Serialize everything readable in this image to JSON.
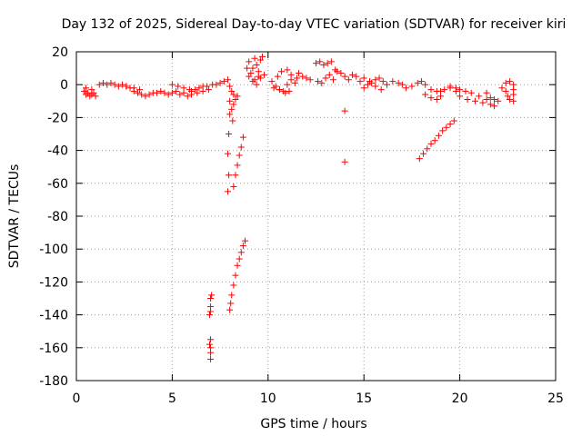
{
  "chart_data": {
    "type": "scatter",
    "title": "Day 132 of 2025, Sidereal Day-to-day VTEC variation (SDTVAR) for receiver kiri",
    "xlabel": "GPS time / hours",
    "ylabel": "SDTVAR / TECUs",
    "xlim": [
      0,
      25
    ],
    "ylim": [
      -180,
      20
    ],
    "xticks": [
      0,
      5,
      10,
      15,
      20,
      25
    ],
    "yticks": [
      20,
      0,
      -20,
      -40,
      -60,
      -80,
      -100,
      -120,
      -140,
      -160,
      -180
    ],
    "grid": true,
    "marker": "+",
    "marker_color": "#ff0000",
    "series": [
      {
        "points": [
          [
            0.4,
            -4
          ],
          [
            0.5,
            -6
          ],
          [
            0.6,
            -5
          ],
          [
            0.7,
            -7
          ],
          [
            0.8,
            -3
          ],
          [
            0.9,
            -5
          ],
          [
            1.2,
            0
          ],
          [
            1.4,
            1
          ],
          [
            1.6,
            0
          ],
          [
            1.8,
            1
          ],
          [
            2.0,
            0
          ],
          [
            2.2,
            -1
          ],
          [
            2.4,
            0
          ],
          [
            2.6,
            -1
          ],
          [
            2.8,
            -2
          ],
          [
            3.0,
            -4
          ],
          [
            3.2,
            -5
          ],
          [
            3.4,
            -6
          ],
          [
            3.6,
            -7
          ],
          [
            3.8,
            -6
          ],
          [
            4.0,
            -5
          ],
          [
            4.2,
            -5
          ],
          [
            4.4,
            -4
          ],
          [
            4.6,
            -5
          ],
          [
            4.8,
            -6
          ],
          [
            5.0,
            -5
          ],
          [
            5.2,
            -4
          ],
          [
            5.4,
            -6
          ],
          [
            5.6,
            -5
          ],
          [
            5.8,
            -7
          ],
          [
            6.0,
            -6
          ],
          [
            5.0,
            0
          ],
          [
            5.3,
            -1
          ],
          [
            5.6,
            -2
          ],
          [
            5.9,
            -3
          ],
          [
            6.2,
            -3
          ],
          [
            6.4,
            -2
          ],
          [
            6.6,
            -1
          ],
          [
            6.8,
            -1
          ],
          [
            6.0,
            -4
          ],
          [
            6.3,
            -5
          ],
          [
            6.6,
            -4
          ],
          [
            6.9,
            -3
          ],
          [
            7.1,
            0
          ],
          [
            7.3,
            0
          ],
          [
            7.5,
            1
          ],
          [
            7.7,
            2
          ],
          [
            7.9,
            3
          ],
          [
            8.0,
            -1
          ],
          [
            8.1,
            -4
          ],
          [
            8.2,
            -6
          ],
          [
            7.0,
            -130
          ],
          [
            7.0,
            -135
          ],
          [
            7.0,
            -138
          ],
          [
            7.05,
            -128
          ],
          [
            6.95,
            -140
          ],
          [
            7.0,
            -155
          ],
          [
            7.0,
            -160
          ],
          [
            7.0,
            -163
          ],
          [
            7.0,
            -167
          ],
          [
            6.95,
            -158
          ],
          [
            8.0,
            -10
          ],
          [
            8.0,
            -18
          ],
          [
            7.95,
            -30
          ],
          [
            7.9,
            -42
          ],
          [
            7.95,
            -55
          ],
          [
            7.9,
            -65
          ],
          [
            8.2,
            -12
          ],
          [
            8.3,
            -9
          ],
          [
            8.4,
            -7
          ],
          [
            8.1,
            -15
          ],
          [
            8.15,
            -22
          ],
          [
            8.2,
            -62
          ],
          [
            8.3,
            -55
          ],
          [
            8.4,
            -49
          ],
          [
            8.5,
            -43
          ],
          [
            8.6,
            -38
          ],
          [
            8.7,
            -32
          ],
          [
            8.0,
            -137
          ],
          [
            8.05,
            -133
          ],
          [
            8.1,
            -128
          ],
          [
            8.2,
            -122
          ],
          [
            8.3,
            -116
          ],
          [
            8.4,
            -110
          ],
          [
            8.5,
            -106
          ],
          [
            8.6,
            -102
          ],
          [
            8.7,
            -98
          ],
          [
            8.8,
            -95
          ],
          [
            9.0,
            14
          ],
          [
            9.2,
            10
          ],
          [
            9.3,
            16
          ],
          [
            9.4,
            12
          ],
          [
            9.5,
            8
          ],
          [
            9.6,
            15
          ],
          [
            9.7,
            17
          ],
          [
            9.0,
            5
          ],
          [
            9.2,
            2
          ],
          [
            9.4,
            0
          ],
          [
            9.6,
            4
          ],
          [
            9.8,
            6
          ],
          [
            8.9,
            10
          ],
          [
            9.1,
            7
          ],
          [
            9.3,
            3
          ],
          [
            9.5,
            5
          ],
          [
            10.2,
            2
          ],
          [
            10.4,
            -1
          ],
          [
            10.6,
            -3
          ],
          [
            10.8,
            -4
          ],
          [
            11.0,
            0
          ],
          [
            11.2,
            3
          ],
          [
            11.4,
            1
          ],
          [
            10.5,
            5
          ],
          [
            10.7,
            8
          ],
          [
            11.0,
            9
          ],
          [
            11.2,
            6
          ],
          [
            11.5,
            4
          ],
          [
            10.3,
            -2
          ],
          [
            10.6,
            -3
          ],
          [
            10.9,
            -5
          ],
          [
            11.1,
            -4
          ],
          [
            11.6,
            7
          ],
          [
            11.8,
            5
          ],
          [
            12.0,
            4
          ],
          [
            12.2,
            3
          ],
          [
            12.5,
            13
          ],
          [
            12.7,
            14
          ],
          [
            12.9,
            12
          ],
          [
            13.1,
            13
          ],
          [
            13.3,
            14
          ],
          [
            13.5,
            9
          ],
          [
            12.6,
            2
          ],
          [
            12.8,
            1
          ],
          [
            13.0,
            4
          ],
          [
            13.2,
            6
          ],
          [
            13.4,
            3
          ],
          [
            13.6,
            8
          ],
          [
            13.8,
            7
          ],
          [
            14.0,
            5
          ],
          [
            14.2,
            3
          ],
          [
            14.4,
            6
          ],
          [
            14.6,
            5
          ],
          [
            14.8,
            2
          ],
          [
            14.0,
            -16
          ],
          [
            14.0,
            -47
          ],
          [
            15.0,
            -2
          ],
          [
            15.2,
            0
          ],
          [
            15.4,
            1
          ],
          [
            15.6,
            3
          ],
          [
            15.8,
            4
          ],
          [
            16.0,
            2
          ],
          [
            16.2,
            0
          ],
          [
            15.0,
            4
          ],
          [
            15.3,
            2
          ],
          [
            15.6,
            -1
          ],
          [
            15.9,
            -3
          ],
          [
            16.5,
            2
          ],
          [
            16.8,
            1
          ],
          [
            17.0,
            0
          ],
          [
            17.2,
            -2
          ],
          [
            17.5,
            -1
          ],
          [
            17.8,
            1
          ],
          [
            18.0,
            2
          ],
          [
            18.2,
            0
          ],
          [
            18.5,
            -3
          ],
          [
            18.8,
            -4
          ],
          [
            19.0,
            -4
          ],
          [
            19.2,
            -3
          ],
          [
            19.5,
            -2
          ],
          [
            19.8,
            -4
          ],
          [
            18.2,
            -6
          ],
          [
            18.5,
            -8
          ],
          [
            18.8,
            -9
          ],
          [
            19.0,
            -7
          ],
          [
            19.5,
            -1
          ],
          [
            19.8,
            -2
          ],
          [
            20.0,
            -3
          ],
          [
            20.3,
            -4
          ],
          [
            20.6,
            -5
          ],
          [
            21.0,
            -7
          ],
          [
            21.4,
            -9
          ],
          [
            20.0,
            -7
          ],
          [
            20.4,
            -9
          ],
          [
            20.8,
            -10
          ],
          [
            21.2,
            -11
          ],
          [
            21.6,
            -12
          ],
          [
            21.8,
            -13
          ],
          [
            21.4,
            -5
          ],
          [
            21.6,
            -8
          ],
          [
            21.8,
            -9
          ],
          [
            22.0,
            -10
          ],
          [
            22.2,
            -2
          ],
          [
            22.4,
            1
          ],
          [
            22.6,
            2
          ],
          [
            22.8,
            0
          ],
          [
            22.8,
            -3
          ],
          [
            22.8,
            -6
          ],
          [
            22.8,
            -10
          ],
          [
            22.4,
            -4
          ],
          [
            22.5,
            -7
          ],
          [
            22.6,
            -9
          ],
          [
            17.9,
            -45
          ],
          [
            18.1,
            -42
          ],
          [
            18.3,
            -39
          ],
          [
            18.5,
            -36
          ],
          [
            18.7,
            -34
          ],
          [
            18.9,
            -31
          ],
          [
            19.1,
            -28
          ],
          [
            19.3,
            -26
          ],
          [
            19.5,
            -24
          ],
          [
            19.7,
            -22
          ],
          [
            0.5,
            -2
          ],
          [
            0.8,
            -6
          ],
          [
            1.0,
            -7
          ],
          [
            2.6,
            -1
          ],
          [
            3.0,
            -2
          ],
          [
            3.3,
            -3
          ]
        ]
      }
    ]
  }
}
